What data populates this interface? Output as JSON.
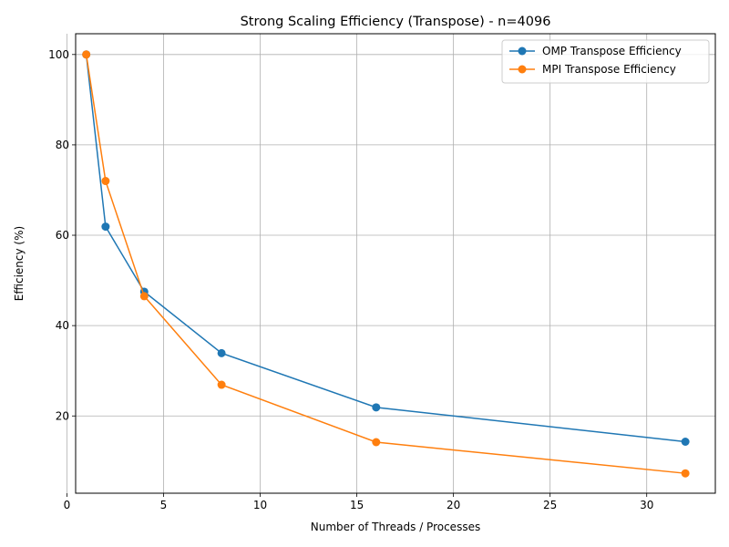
{
  "chart_data": {
    "type": "line",
    "title": "Strong Scaling Efficiency (Transpose) - n=4096",
    "xlabel": "Number of Threads / Processes",
    "ylabel": "Efficiency (%)",
    "xlim": [
      0.45,
      33.55
    ],
    "ylim": [
      2.9,
      104.6
    ],
    "xticks": [
      0,
      5,
      10,
      15,
      20,
      25,
      30
    ],
    "yticks": [
      20,
      40,
      60,
      80,
      100
    ],
    "grid": true,
    "legend_position": "top-right",
    "marker": "circle",
    "x": [
      1,
      2,
      4,
      8,
      16,
      32
    ],
    "series": [
      {
        "name": "OMP Transpose Efficiency",
        "color": "#1f77b4",
        "values": [
          100,
          61.9,
          47.5,
          33.9,
          21.9,
          14.3
        ]
      },
      {
        "name": "MPI Transpose Efficiency",
        "color": "#ff7f0e",
        "values": [
          100,
          72.0,
          46.5,
          26.9,
          14.2,
          7.3
        ]
      }
    ]
  }
}
